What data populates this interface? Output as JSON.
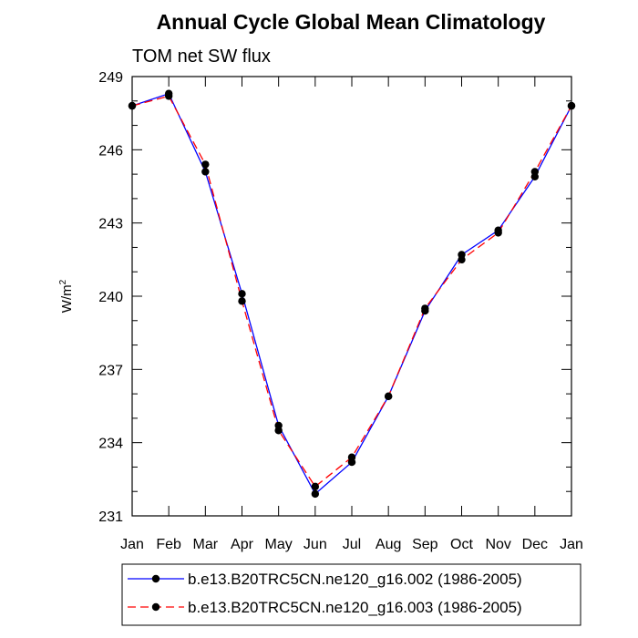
{
  "chart_data": {
    "type": "line",
    "title": "Annual Cycle Global Mean Climatology",
    "subtitle": "TOM net SW flux",
    "ylabel": "W/m",
    "ylabel_superscript": "2",
    "xlabel": "",
    "categories": [
      "Jan",
      "Feb",
      "Mar",
      "Apr",
      "May",
      "Jun",
      "Jul",
      "Aug",
      "Sep",
      "Oct",
      "Nov",
      "Dec",
      "Jan"
    ],
    "ylim": [
      231,
      249
    ],
    "yticks": [
      231,
      234,
      237,
      240,
      243,
      246,
      249
    ],
    "ytick_labels": [
      "231",
      "234",
      "237",
      "240",
      "243",
      "246",
      "249"
    ],
    "grid": false,
    "legend_position": "bottom",
    "series": [
      {
        "name": "b.e13.B20TRC5CN.ne120_g16.002 (1986-2005)",
        "color": "#0000ff",
        "dash": "solid",
        "values": [
          247.8,
          248.3,
          245.1,
          240.1,
          234.7,
          231.9,
          233.2,
          235.9,
          239.4,
          241.7,
          242.7,
          244.9,
          247.8
        ]
      },
      {
        "name": "b.e13.B20TRC5CN.ne120_g16.003 (1986-2005)",
        "color": "#ff0000",
        "dash": "dashed",
        "values": [
          247.8,
          248.2,
          245.4,
          239.8,
          234.5,
          232.2,
          233.4,
          235.9,
          239.5,
          241.5,
          242.6,
          245.1,
          247.8
        ]
      }
    ]
  }
}
